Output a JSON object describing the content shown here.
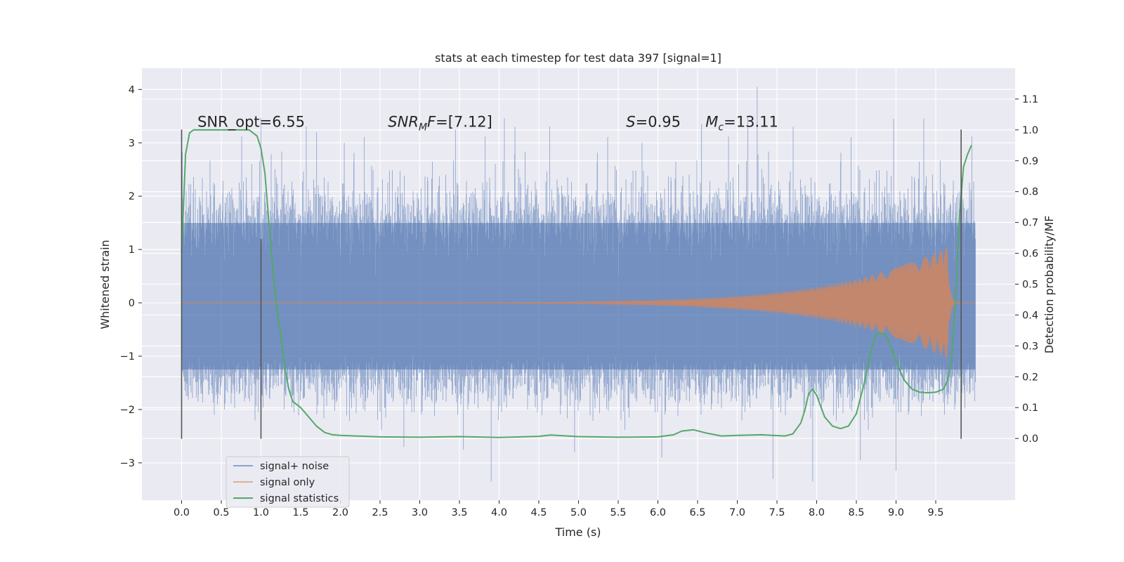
{
  "chart_data": {
    "type": "line",
    "title": "stats at each timestep for test data 397 [signal=1]",
    "xlabel": "Time (s)",
    "ylabel": "Whitened strain",
    "ylabel_right": "Detection probability/MF",
    "xlim": [
      -0.5,
      10.5
    ],
    "ylim": [
      -3.7,
      4.4
    ],
    "ylim_right": [
      -0.2,
      1.2
    ],
    "xticks": [
      0.0,
      0.5,
      1.0,
      1.5,
      2.0,
      2.5,
      3.0,
      3.5,
      4.0,
      4.5,
      5.0,
      5.5,
      6.0,
      6.5,
      7.0,
      7.5,
      8.0,
      8.5,
      9.0,
      9.5
    ],
    "xtick_labels": [
      "0.0",
      "0.5",
      "1.0",
      "1.5",
      "2.0",
      "2.5",
      "3.0",
      "3.5",
      "4.0",
      "4.5",
      "5.0",
      "5.5",
      "6.0",
      "6.5",
      "7.0",
      "7.5",
      "8.0",
      "8.5",
      "9.0",
      "9.5"
    ],
    "yticks": [
      -3,
      -2,
      -1,
      0,
      1,
      2,
      3,
      4
    ],
    "ytick_labels": [
      "−3",
      "−2",
      "−1",
      "0",
      "1",
      "2",
      "3",
      "4"
    ],
    "yticks_right": [
      0.0,
      0.1,
      0.2,
      0.3,
      0.4,
      0.5,
      0.6,
      0.7,
      0.8,
      0.9,
      1.0,
      1.1
    ],
    "ytick_labels_right": [
      "0.0",
      "0.1",
      "0.2",
      "0.3",
      "0.4",
      "0.5",
      "0.6",
      "0.7",
      "0.8",
      "0.9",
      "1.0",
      "1.1"
    ],
    "grid": true,
    "legend_position": "lower-left",
    "annotations": [
      {
        "text": "SNR_opt=6.55",
        "x": 0.2,
        "y": 3.3
      },
      {
        "text": "SNR_MF=[7.12]",
        "x": 2.6,
        "y": 3.3
      },
      {
        "text": "S=0.95",
        "x": 5.6,
        "y": 3.3
      },
      {
        "text": "M_c=13.11",
        "x": 6.6,
        "y": 3.3
      }
    ],
    "vlines": [
      {
        "x": 0.0,
        "ymin": -2.55,
        "ymax": 3.25
      },
      {
        "x": 1.0,
        "ymin": -2.55,
        "ymax": 1.2
      },
      {
        "x": 9.82,
        "ymin": -2.55,
        "ymax": 3.25
      }
    ],
    "series": [
      {
        "name": "signal+ noise",
        "color": "#4c72b0",
        "axis": "left",
        "kind": "noise",
        "x_range": [
          0.0,
          10.0
        ],
        "band_range": [
          -1.3,
          1.45
        ],
        "peaks_up": [
          [
            7.25,
            4.05
          ],
          [
            8.97,
            3.45
          ],
          [
            9.35,
            3.45
          ],
          [
            6.55,
            3.35
          ],
          [
            1.7,
            3.2
          ],
          [
            3.45,
            3.25
          ],
          [
            4.2,
            3.3
          ],
          [
            5.8,
            3.0
          ],
          [
            2.05,
            3.0
          ]
        ],
        "peaks_down": [
          [
            3.9,
            -3.35
          ],
          [
            7.95,
            -3.35
          ],
          [
            7.45,
            -3.3
          ],
          [
            9.0,
            -3.15
          ],
          [
            3.55,
            -2.75
          ],
          [
            2.8,
            -2.7
          ],
          [
            6.05,
            -2.9
          ],
          [
            8.55,
            -2.95
          ],
          [
            4.95,
            -2.8
          ]
        ]
      },
      {
        "name": "signal only",
        "color": "#dd8452",
        "axis": "left",
        "kind": "chirp",
        "x_range": [
          0.0,
          10.0
        ],
        "peak_time": 9.65,
        "peak_amplitude": 1.05
      },
      {
        "name": "signal statistics",
        "color": "#55a868",
        "axis": "right",
        "kind": "line",
        "x": [
          0.0,
          0.05,
          0.1,
          0.15,
          0.2,
          0.3,
          0.5,
          0.7,
          0.85,
          0.95,
          1.0,
          1.05,
          1.1,
          1.15,
          1.2,
          1.25,
          1.3,
          1.35,
          1.4,
          1.5,
          1.6,
          1.7,
          1.8,
          1.9,
          2.0,
          2.5,
          3.0,
          3.5,
          4.0,
          4.5,
          4.65,
          5.0,
          5.5,
          6.0,
          6.2,
          6.3,
          6.45,
          6.6,
          6.8,
          7.0,
          7.3,
          7.6,
          7.7,
          7.8,
          7.85,
          7.9,
          7.95,
          8.0,
          8.1,
          8.2,
          8.3,
          8.4,
          8.5,
          8.6,
          8.7,
          8.75,
          8.85,
          8.9,
          9.0,
          9.1,
          9.2,
          9.3,
          9.4,
          9.5,
          9.6,
          9.65,
          9.7,
          9.75,
          9.8,
          9.85,
          9.9,
          9.95
        ],
        "y": [
          0.6,
          0.92,
          0.99,
          1.0,
          1.0,
          1.0,
          1.0,
          1.0,
          1.0,
          0.98,
          0.94,
          0.86,
          0.7,
          0.55,
          0.42,
          0.33,
          0.23,
          0.16,
          0.12,
          0.1,
          0.07,
          0.04,
          0.02,
          0.012,
          0.01,
          0.005,
          0.004,
          0.006,
          0.003,
          0.007,
          0.011,
          0.006,
          0.004,
          0.005,
          0.012,
          0.024,
          0.028,
          0.018,
          0.008,
          0.01,
          0.012,
          0.008,
          0.015,
          0.05,
          0.09,
          0.145,
          0.16,
          0.14,
          0.07,
          0.04,
          0.032,
          0.04,
          0.08,
          0.18,
          0.3,
          0.34,
          0.34,
          0.32,
          0.25,
          0.19,
          0.16,
          0.15,
          0.148,
          0.15,
          0.16,
          0.19,
          0.26,
          0.45,
          0.72,
          0.88,
          0.92,
          0.95
        ]
      }
    ]
  }
}
